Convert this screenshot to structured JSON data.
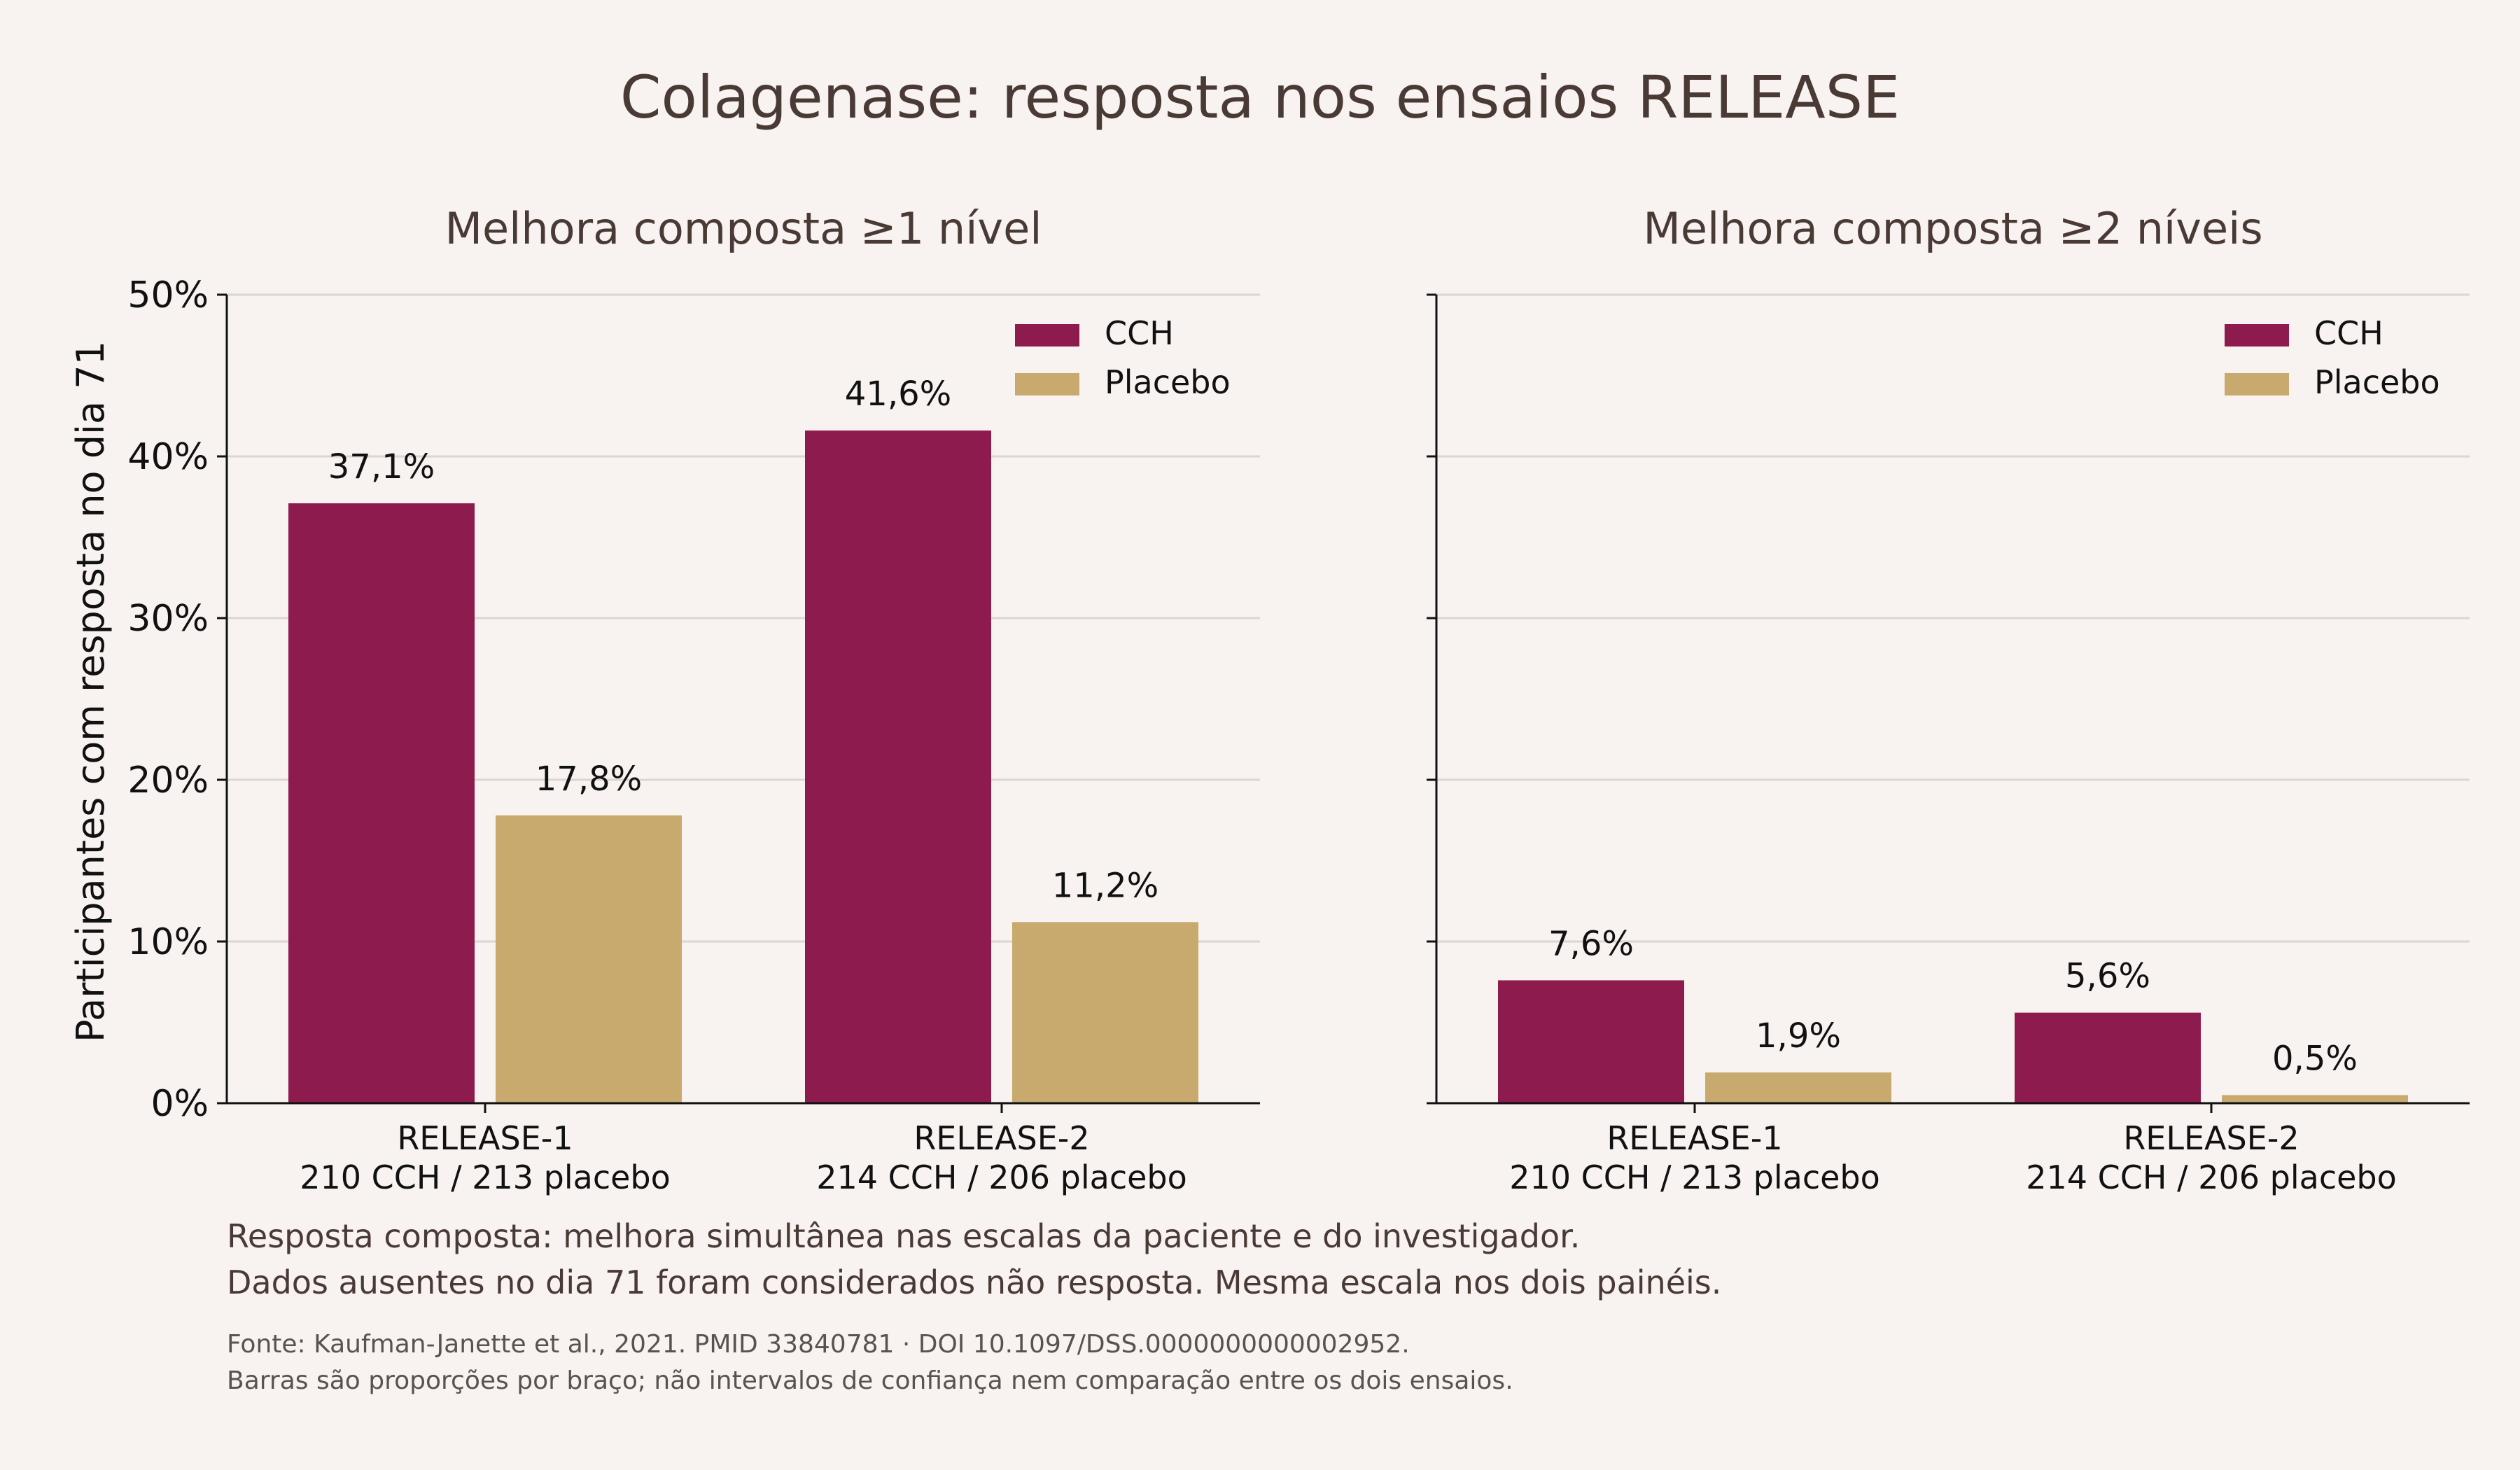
{
  "colors": {
    "background": "#f8f3f0",
    "CCH": "#8e1b4d",
    "Placebo": "#c8aa6e",
    "title_text": "#4a3a36",
    "grid": "#dcd6d2"
  },
  "title": "Colagenase: resposta nos ensaios RELEASE",
  "ylabel": "Participantes com resposta no dia 71",
  "yticks": [
    "0%",
    "10%",
    "20%",
    "30%",
    "40%",
    "50%"
  ],
  "notes": [
    "Resposta composta: melhora simultânea nas escalas da paciente e do investigador.",
    "Dados ausentes no dia 71 foram considerados não resposta. Mesma escala nos dois painéis."
  ],
  "source": [
    "Fonte: Kaufman-Janette et al., 2021. PMID 33840781 · DOI 10.1097/DSS.0000000000002952.",
    "Barras são proporções por braço; não intervalos de confiança nem comparação entre os dois ensaios."
  ],
  "chart_data": [
    {
      "type": "bar",
      "title": "Melhora composta ≥1 nível",
      "categories": [
        "RELEASE-1",
        "RELEASE-2"
      ],
      "category_sublabels": [
        "210 CCH / 213 placebo",
        "214 CCH / 206 placebo"
      ],
      "series": [
        {
          "name": "CCH",
          "values": [
            37.1,
            41.6
          ],
          "labels": [
            "37,1%",
            "41,6%"
          ]
        },
        {
          "name": "Placebo",
          "values": [
            17.8,
            11.2
          ],
          "labels": [
            "17,8%",
            "11,2%"
          ]
        }
      ],
      "ylabel": "Participantes com resposta no dia 71",
      "ylim": [
        0,
        50
      ],
      "grid": true,
      "legend": "top-right"
    },
    {
      "type": "bar",
      "title": "Melhora composta ≥2 níveis",
      "categories": [
        "RELEASE-1",
        "RELEASE-2"
      ],
      "category_sublabels": [
        "210 CCH / 213 placebo",
        "214 CCH / 206 placebo"
      ],
      "series": [
        {
          "name": "CCH",
          "values": [
            7.6,
            5.6
          ],
          "labels": [
            "7,6%",
            "5,6%"
          ]
        },
        {
          "name": "Placebo",
          "values": [
            1.9,
            0.5
          ],
          "labels": [
            "1,9%",
            "0,5%"
          ]
        }
      ],
      "ylim": [
        0,
        50
      ],
      "grid": true,
      "legend": "top-right"
    }
  ]
}
